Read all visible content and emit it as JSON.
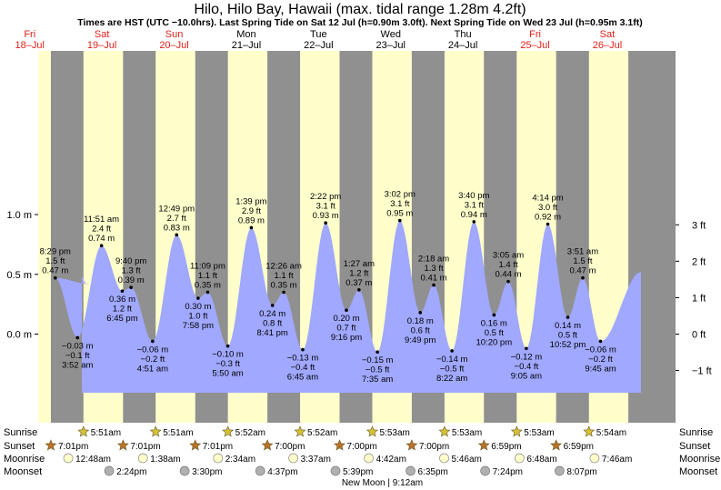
{
  "chart_data": {
    "type": "area",
    "title": "Hilo, Hilo Bay, Hawaii (max. tidal range 1.28m 4.2ft)",
    "subtitle": "Times are HST (UTC −10.0hrs). Last Spring Tide on Sat 12 Jul (h=0.90m 3.0ft). Next Spring Tide on Wed 23 Jul (h=0.95m 3.1ft)",
    "xlabel": "",
    "ylabel": "",
    "ylim": [
      -0.35,
      1.17
    ],
    "y_ticks_m": [
      {
        "label": "1.0 m",
        "value": 1.0
      },
      {
        "label": "0.5 m",
        "value": 0.5
      },
      {
        "label": "0.0 m",
        "value": 0.0
      }
    ],
    "y_ticks_ft": [
      {
        "label": "3 ft",
        "value": 0.9144
      },
      {
        "label": "2 ft",
        "value": 0.6096
      },
      {
        "label": "1 ft",
        "value": 0.3048
      },
      {
        "label": "0 ft",
        "value": 0.0
      },
      {
        "label": "−1 ft",
        "value": -0.3048
      }
    ],
    "days": [
      {
        "day": "Fri",
        "date": "18–Jul",
        "weekend": true
      },
      {
        "day": "Sat",
        "date": "19–Jul",
        "weekend": true
      },
      {
        "day": "Sun",
        "date": "20–Jul",
        "weekend": true
      },
      {
        "day": "Mon",
        "date": "21–Jul",
        "weekend": false
      },
      {
        "day": "Tue",
        "date": "22–Jul",
        "weekend": false
      },
      {
        "day": "Wed",
        "date": "23–Jul",
        "weekend": false
      },
      {
        "day": "Thu",
        "date": "24–Jul",
        "weekend": false
      },
      {
        "day": "Fri",
        "date": "25–Jul",
        "weekend": true
      },
      {
        "day": "Sat",
        "date": "26–Jul",
        "weekend": true
      }
    ],
    "series": [
      {
        "points": [
          {
            "day": 0,
            "time": "20:29",
            "time_label": "8:29 pm",
            "ft": "1.5 ft",
            "m": 0.47,
            "type": "high"
          },
          {
            "day": 1,
            "time": "03:52",
            "time_label": "3:52 am",
            "ft": "−0.1 ft",
            "m": -0.03,
            "type": "low"
          },
          {
            "day": 1,
            "time": "11:51",
            "time_label": "11:51 am",
            "ft": "2.4 ft",
            "m": 0.74,
            "type": "high"
          },
          {
            "day": 1,
            "time": "18:45",
            "time_label": "6:45 pm",
            "ft": "1.2 ft",
            "m": 0.36,
            "type": "low"
          },
          {
            "day": 1,
            "time": "21:40",
            "time_label": "9:40 pm",
            "ft": "1.3 ft",
            "m": 0.39,
            "type": "high"
          },
          {
            "day": 2,
            "time": "04:51",
            "time_label": "4:51 am",
            "ft": "−0.2 ft",
            "m": -0.06,
            "type": "low"
          },
          {
            "day": 2,
            "time": "12:49",
            "time_label": "12:49 pm",
            "ft": "2.7 ft",
            "m": 0.83,
            "type": "high"
          },
          {
            "day": 2,
            "time": "19:58",
            "time_label": "7:58 pm",
            "ft": "1.0 ft",
            "m": 0.3,
            "type": "low"
          },
          {
            "day": 2,
            "time": "23:09",
            "time_label": "11:09 pm",
            "ft": "1.1 ft",
            "m": 0.35,
            "type": "high"
          },
          {
            "day": 3,
            "time": "05:50",
            "time_label": "5:50 am",
            "ft": "−0.3 ft",
            "m": -0.1,
            "type": "low"
          },
          {
            "day": 3,
            "time": "13:39",
            "time_label": "1:39 pm",
            "ft": "2.9 ft",
            "m": 0.89,
            "type": "high"
          },
          {
            "day": 3,
            "time": "20:41",
            "time_label": "8:41 pm",
            "ft": "0.8 ft",
            "m": 0.24,
            "type": "low"
          },
          {
            "day": 4,
            "time": "00:26",
            "time_label": "12:26 am",
            "ft": "1.1 ft",
            "m": 0.35,
            "type": "high"
          },
          {
            "day": 4,
            "time": "06:45",
            "time_label": "6:45 am",
            "ft": "−0.4 ft",
            "m": -0.13,
            "type": "low"
          },
          {
            "day": 4,
            "time": "14:22",
            "time_label": "2:22 pm",
            "ft": "3.1 ft",
            "m": 0.93,
            "type": "high"
          },
          {
            "day": 4,
            "time": "21:16",
            "time_label": "9:16 pm",
            "ft": "0.7 ft",
            "m": 0.2,
            "type": "low"
          },
          {
            "day": 5,
            "time": "01:27",
            "time_label": "1:27 am",
            "ft": "1.2 ft",
            "m": 0.37,
            "type": "high"
          },
          {
            "day": 5,
            "time": "07:35",
            "time_label": "7:35 am",
            "ft": "−0.5 ft",
            "m": -0.15,
            "type": "low"
          },
          {
            "day": 5,
            "time": "15:02",
            "time_label": "3:02 pm",
            "ft": "3.1 ft",
            "m": 0.95,
            "type": "high"
          },
          {
            "day": 5,
            "time": "21:49",
            "time_label": "9:49 pm",
            "ft": "0.6 ft",
            "m": 0.18,
            "type": "low"
          },
          {
            "day": 6,
            "time": "02:18",
            "time_label": "2:18 am",
            "ft": "1.3 ft",
            "m": 0.41,
            "type": "high"
          },
          {
            "day": 6,
            "time": "08:22",
            "time_label": "8:22 am",
            "ft": "−0.5 ft",
            "m": -0.14,
            "type": "low"
          },
          {
            "day": 6,
            "time": "15:40",
            "time_label": "3:40 pm",
            "ft": "3.1 ft",
            "m": 0.94,
            "type": "high"
          },
          {
            "day": 6,
            "time": "22:20",
            "time_label": "10:20 pm",
            "ft": "0.5 ft",
            "m": 0.16,
            "type": "low"
          },
          {
            "day": 7,
            "time": "03:05",
            "time_label": "3:05 am",
            "ft": "1.4 ft",
            "m": 0.44,
            "type": "high"
          },
          {
            "day": 7,
            "time": "09:05",
            "time_label": "9:05 am",
            "ft": "−0.4 ft",
            "m": -0.12,
            "type": "low"
          },
          {
            "day": 7,
            "time": "16:14",
            "time_label": "4:14 pm",
            "ft": "3.0 ft",
            "m": 0.92,
            "type": "high"
          },
          {
            "day": 7,
            "time": "22:52",
            "time_label": "10:52 pm",
            "ft": "0.5 ft",
            "m": 0.14,
            "type": "low"
          },
          {
            "day": 8,
            "time": "03:51",
            "time_label": "3:51 am",
            "ft": "1.5 ft",
            "m": 0.47,
            "type": "high"
          },
          {
            "day": 8,
            "time": "09:45",
            "time_label": "9:45 am",
            "ft": "−0.2 ft",
            "m": -0.06,
            "type": "low"
          }
        ]
      }
    ],
    "sun_moon": {
      "row_labels": [
        "Sunrise",
        "Sunset",
        "Moonrise",
        "Moonset"
      ],
      "sunrise": [
        {
          "day": 1,
          "time": "05:51",
          "label": "5:51am"
        },
        {
          "day": 2,
          "time": "05:51",
          "label": "5:51am"
        },
        {
          "day": 3,
          "time": "05:52",
          "label": "5:52am"
        },
        {
          "day": 4,
          "time": "05:52",
          "label": "5:52am"
        },
        {
          "day": 5,
          "time": "05:53",
          "label": "5:53am"
        },
        {
          "day": 6,
          "time": "05:53",
          "label": "5:53am"
        },
        {
          "day": 7,
          "time": "05:53",
          "label": "5:53am"
        },
        {
          "day": 8,
          "time": "05:54",
          "label": "5:54am"
        }
      ],
      "sunset": [
        {
          "day": 0,
          "time": "19:01",
          "label": "7:01pm"
        },
        {
          "day": 1,
          "time": "19:01",
          "label": "7:01pm"
        },
        {
          "day": 2,
          "time": "19:01",
          "label": "7:01pm"
        },
        {
          "day": 3,
          "time": "19:00",
          "label": "7:00pm"
        },
        {
          "day": 4,
          "time": "19:00",
          "label": "7:00pm"
        },
        {
          "day": 5,
          "time": "19:00",
          "label": "7:00pm"
        },
        {
          "day": 6,
          "time": "18:59",
          "label": "6:59pm"
        },
        {
          "day": 7,
          "time": "18:59",
          "label": "6:59pm"
        }
      ],
      "moonrise": [
        {
          "day": 1,
          "time": "00:48",
          "label": "12:48am"
        },
        {
          "day": 2,
          "time": "01:38",
          "label": "1:38am"
        },
        {
          "day": 3,
          "time": "02:34",
          "label": "2:34am"
        },
        {
          "day": 4,
          "time": "03:37",
          "label": "3:37am"
        },
        {
          "day": 5,
          "time": "04:42",
          "label": "4:42am"
        },
        {
          "day": 6,
          "time": "05:46",
          "label": "5:46am"
        },
        {
          "day": 7,
          "time": "06:48",
          "label": "6:48am"
        },
        {
          "day": 8,
          "time": "07:46",
          "label": "7:46am"
        }
      ],
      "moonset": [
        {
          "day": 1,
          "time": "14:24",
          "label": "2:24pm"
        },
        {
          "day": 2,
          "time": "15:30",
          "label": "3:30pm"
        },
        {
          "day": 3,
          "time": "16:37",
          "label": "4:37pm"
        },
        {
          "day": 4,
          "time": "17:39",
          "label": "5:39pm"
        },
        {
          "day": 5,
          "time": "18:35",
          "label": "6:35pm"
        },
        {
          "day": 6,
          "time": "19:24",
          "label": "7:24pm"
        },
        {
          "day": 7,
          "time": "20:07",
          "label": "8:07pm"
        }
      ],
      "moon_phase": {
        "day": 5,
        "time": "09:12",
        "label": "New Moon | 9:12am"
      }
    },
    "colors": {
      "day": "#ffffcc",
      "night": "#909090",
      "water": "#a0a8ff",
      "point": "#000000",
      "weekend_text": "#e0201a",
      "weekday_text": "#000000",
      "sunrise_star": "#d4c23a",
      "sunset_star": "#b8732a",
      "moonrise": "#ffffcc",
      "moonset": "#b0b0b0"
    },
    "grid": false,
    "legend": "none"
  }
}
